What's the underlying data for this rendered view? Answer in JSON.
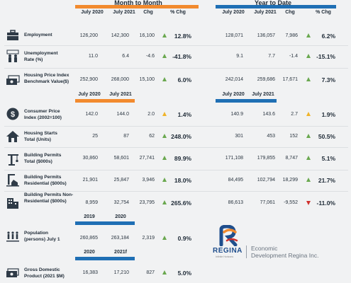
{
  "headers": {
    "month_title": "Month to Month",
    "ytd_title": "Year to Date"
  },
  "columns": {
    "m1": [
      "July 2020",
      "July 2021",
      "Chg",
      "% Chg"
    ],
    "y1": [
      "July 2020",
      "July 2021",
      "Chg",
      "% Chg"
    ],
    "m2": [
      "July 2020",
      "July 2021"
    ],
    "y2": [
      "July 2020",
      "July 2021"
    ],
    "m3": [
      "2019",
      "2020"
    ],
    "m4": [
      "2020",
      "2021f"
    ]
  },
  "rows": [
    {
      "label": "Employment",
      "icon": "briefcase-icon",
      "m": [
        "126,200",
        "142,300",
        "16,100",
        "12.8%"
      ],
      "mt": "up",
      "y": [
        "128,071",
        "136,057",
        "7,986",
        "6.2%"
      ],
      "yt": "up"
    },
    {
      "label": "Unemployment Rate (%)",
      "icon": "people-icon",
      "m": [
        "11.0",
        "6.4",
        "-4.6",
        "-41.8%"
      ],
      "mt": "up",
      "y": [
        "9.1",
        "7.7",
        "-1.4",
        "-15.1%"
      ],
      "yt": "up"
    },
    {
      "label": "Housing Price Index Benchmark Value($)",
      "icon": "money-icon",
      "m": [
        "252,900",
        "268,000",
        "15,100",
        "6.0%"
      ],
      "mt": "up",
      "y": [
        "242,014",
        "259,686",
        "17,671",
        "7.3%"
      ],
      "yt": "up"
    },
    {
      "label": "Consumer Price Index (2002=100)",
      "icon": "dollar-coin-icon",
      "m": [
        "142.0",
        "144.0",
        "2.0",
        "1.4%"
      ],
      "mt": "mid",
      "y": [
        "140.9",
        "143.6",
        "2.7",
        "1.9%"
      ],
      "yt": "mid"
    },
    {
      "label": "Housing Starts Total (Units)",
      "icon": "house-icon",
      "m": [
        "25",
        "87",
        "62",
        "248.0%"
      ],
      "mt": "up",
      "y": [
        "301",
        "453",
        "152",
        "50.5%"
      ],
      "yt": "up"
    },
    {
      "label": "Building Permits Total ($000s)",
      "icon": "crane-icon",
      "m": [
        "30,860",
        "58,601",
        "27,741",
        "89.9%"
      ],
      "mt": "up",
      "y": [
        "171,108",
        "179,855",
        "8,747",
        "5.1%"
      ],
      "yt": "up"
    },
    {
      "label": "Building Permits Residential ($000s)",
      "icon": "residential-icon",
      "m": [
        "21,901",
        "25,847",
        "3,946",
        "18.0%"
      ],
      "mt": "up",
      "y": [
        "84,495",
        "102,794",
        "18,299",
        "21.7%"
      ],
      "yt": "up"
    },
    {
      "label": "Building Permits Non-Residential ($000s)",
      "icon": "building-icon",
      "m": [
        "8,959",
        "32,754",
        "23,795",
        "265.6%"
      ],
      "mt": "up",
      "y": [
        "86,613",
        "77,061",
        "-9,552",
        "-11.0%"
      ],
      "yt": "down"
    },
    {
      "label": "Population (persons) July 1",
      "icon": "population-icon",
      "m": [
        "260,865",
        "263,184",
        "2,319",
        "0.9%"
      ],
      "mt": "up"
    },
    {
      "label": "Gross Domestic Product (2021 $M)",
      "icon": "gdp-icon",
      "m": [
        "16,383",
        "17,210",
        "827",
        "5.0%"
      ],
      "mt": "up"
    }
  ],
  "logo": {
    "word": "REGINA",
    "tag": "Infinite Horizons",
    "edr_line1": "Economic",
    "edr_line2": "Development Regina Inc."
  },
  "colors": {
    "orange": "#f28a2e",
    "blue": "#1f6fb4",
    "up": "#6aa84f",
    "mid": "#f0b429",
    "down": "#d0312d"
  }
}
